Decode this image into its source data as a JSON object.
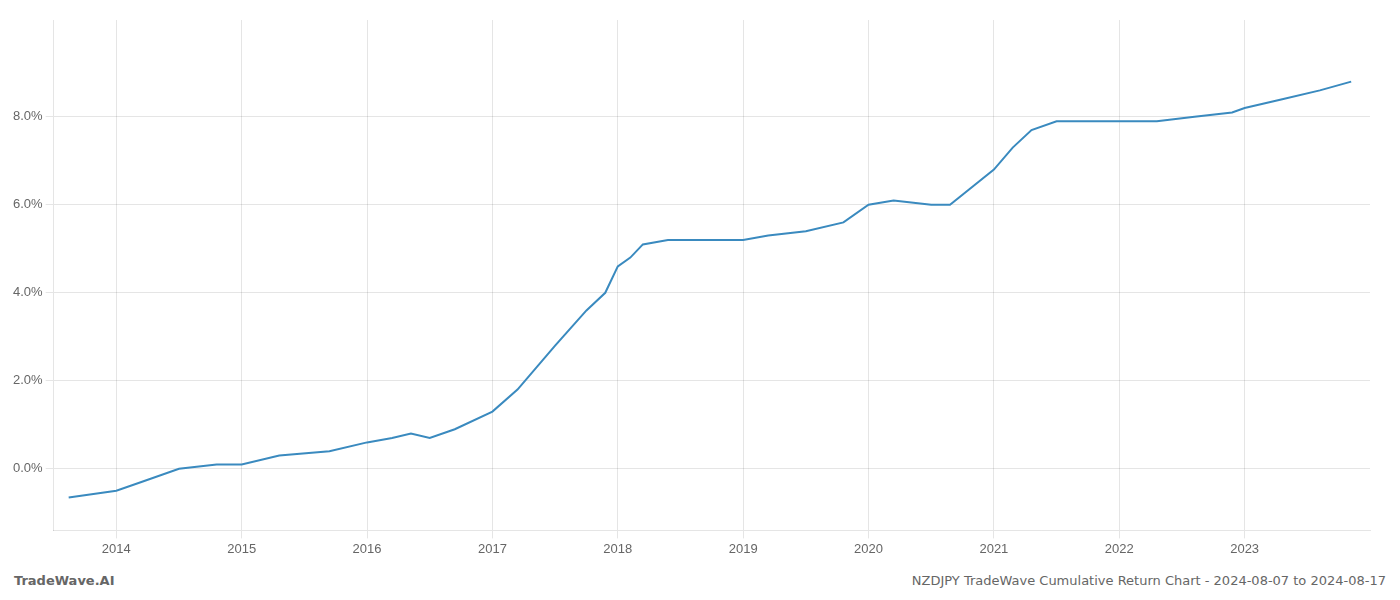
{
  "chart_data": {
    "type": "line",
    "x": [
      2013.62,
      2014.0,
      2014.2,
      2014.5,
      2014.8,
      2015.0,
      2015.3,
      2015.7,
      2016.0,
      2016.2,
      2016.35,
      2016.5,
      2016.7,
      2017.0,
      2017.2,
      2017.5,
      2017.75,
      2017.9,
      2018.0,
      2018.1,
      2018.2,
      2018.4,
      2018.6,
      2018.8,
      2019.0,
      2019.2,
      2019.5,
      2019.8,
      2020.0,
      2020.2,
      2020.5,
      2020.65,
      2021.0,
      2021.15,
      2021.3,
      2021.5,
      2021.7,
      2021.9,
      2022.0,
      2022.3,
      2022.6,
      2022.9,
      2023.0,
      2023.3,
      2023.6,
      2023.85
    ],
    "values": [
      -0.0065,
      -0.005,
      -0.003,
      0.0,
      0.001,
      0.001,
      0.003,
      0.004,
      0.006,
      0.007,
      0.008,
      0.007,
      0.009,
      0.013,
      0.018,
      0.028,
      0.036,
      0.04,
      0.046,
      0.048,
      0.051,
      0.052,
      0.052,
      0.052,
      0.052,
      0.053,
      0.054,
      0.056,
      0.06,
      0.061,
      0.06,
      0.06,
      0.068,
      0.073,
      0.077,
      0.079,
      0.079,
      0.079,
      0.079,
      0.079,
      0.08,
      0.081,
      0.082,
      0.084,
      0.086,
      0.088
    ],
    "color": "#3a8abf",
    "xlim": [
      2013.5,
      2024.0
    ],
    "ylim": [
      -0.014,
      0.102
    ],
    "xticks": [
      2014,
      2015,
      2016,
      2017,
      2018,
      2019,
      2020,
      2021,
      2022,
      2023
    ],
    "yticks": [
      {
        "value": 0.0,
        "label": "0.0%"
      },
      {
        "value": 0.02,
        "label": "2.0%"
      },
      {
        "value": 0.04,
        "label": "4.0%"
      },
      {
        "value": 0.06,
        "label": "6.0%"
      },
      {
        "value": 0.08,
        "label": "8.0%"
      }
    ],
    "grid": true,
    "annotations": [
      "TradeWave.AI",
      "NZDJPY TradeWave Cumulative Return Chart - 2024-08-07 to 2024-08-17"
    ]
  }
}
